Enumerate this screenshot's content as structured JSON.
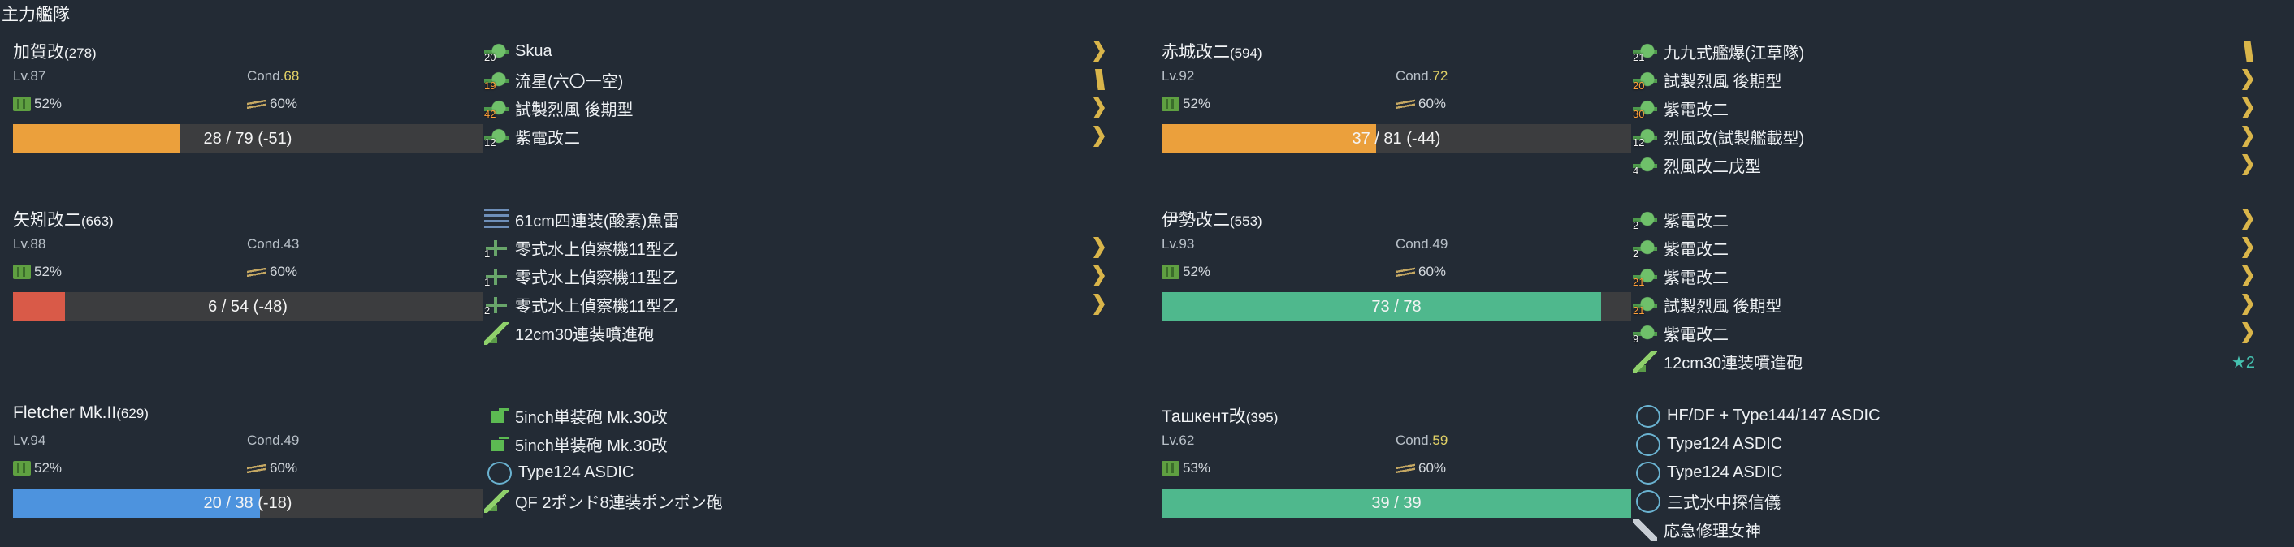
{
  "fleet": {
    "title": "主力艦隊"
  },
  "colors": {
    "hp_orange": "#eba03c",
    "hp_red": "#d95a48",
    "hp_green": "#4fb88d",
    "hp_blue": "#4d93de",
    "proficiency": "#d9b54a",
    "improvement": "#45c2b0"
  },
  "ships": [
    {
      "name": "加賀改",
      "id": "(278)",
      "lv": "Lv.87",
      "cond_label": "Cond.",
      "cond": "68",
      "fuel": "52%",
      "ammo": "60%",
      "hp_text": "28 / 79 (-51)",
      "hp_ratio": 0.354,
      "equips": [
        {
          "slot": "20",
          "name": "Skua",
          "icon": "plane-icon",
          "prof": "chevron"
        },
        {
          "slot": "19",
          "name": "流星(六〇一空)",
          "icon": "plane-icon",
          "prof": "bar"
        },
        {
          "slot": "42",
          "name": "試製烈風 後期型",
          "icon": "plane-icon",
          "prof": "chevron"
        },
        {
          "slot": "12",
          "name": "紫電改二",
          "icon": "plane-icon",
          "prof": "chevron"
        }
      ]
    },
    {
      "name": "赤城改二",
      "id": "(594)",
      "lv": "Lv.92",
      "cond_label": "Cond.",
      "cond": "72",
      "fuel": "52%",
      "ammo": "60%",
      "hp_text": "37 / 81 (-44)",
      "hp_ratio": 0.457,
      "equips": [
        {
          "slot": "21",
          "name": "九九式艦爆(江草隊)",
          "icon": "plane-icon",
          "prof": "bar"
        },
        {
          "slot": "20",
          "name": "試製烈風 後期型",
          "icon": "plane-icon",
          "prof": "chevron"
        },
        {
          "slot": "30",
          "name": "紫電改二",
          "icon": "plane-icon",
          "prof": "chevron"
        },
        {
          "slot": "12",
          "name": "烈風改(試製艦載型)",
          "icon": "plane-icon",
          "prof": "chevron"
        },
        {
          "slot": "4",
          "name": "烈風改二戊型",
          "icon": "plane-icon",
          "prof": "chevron"
        }
      ]
    },
    {
      "name": "矢矧改二",
      "id": "(663)",
      "lv": "Lv.88",
      "cond_label": "Cond.",
      "cond": "43",
      "fuel": "52%",
      "ammo": "60%",
      "hp_text": "6 / 54 (-48)",
      "hp_ratio": 0.111,
      "equips": [
        {
          "slot": "",
          "name": "61cm四連装(酸素)魚雷",
          "icon": "torpedo-icon",
          "prof": ""
        },
        {
          "slot": "1",
          "name": "零式水上偵察機11型乙",
          "icon": "seaplane-icon",
          "prof": "chevron"
        },
        {
          "slot": "1",
          "name": "零式水上偵察機11型乙",
          "icon": "seaplane-icon",
          "prof": "chevron"
        },
        {
          "slot": "2",
          "name": "零式水上偵察機11型乙",
          "icon": "seaplane-icon",
          "prof": "chevron"
        },
        {
          "slot": "",
          "name": "12cm30連装噴進砲",
          "icon": "aa-gun-icon",
          "prof": ""
        }
      ]
    },
    {
      "name": "伊勢改二",
      "id": "(553)",
      "lv": "Lv.93",
      "cond_label": "Cond.",
      "cond": "49",
      "fuel": "52%",
      "ammo": "60%",
      "hp_text": "73 / 78",
      "hp_ratio": 0.936,
      "equips": [
        {
          "slot": "2",
          "name": "紫電改二",
          "icon": "plane-icon",
          "prof": "chevron"
        },
        {
          "slot": "2",
          "name": "紫電改二",
          "icon": "plane-icon",
          "prof": "chevron"
        },
        {
          "slot": "21",
          "name": "紫電改二",
          "icon": "plane-icon",
          "prof": "chevron"
        },
        {
          "slot": "21",
          "name": "試製烈風 後期型",
          "icon": "plane-icon",
          "prof": "chevron"
        },
        {
          "slot": "9",
          "name": "紫電改二",
          "icon": "plane-icon",
          "prof": "chevron"
        },
        {
          "slot": "",
          "name": "12cm30連装噴進砲",
          "icon": "aa-gun-icon",
          "prof": "",
          "star": "★2"
        }
      ]
    },
    {
      "name": "Fletcher Mk.II",
      "id": "(629)",
      "lv": "Lv.94",
      "cond_label": "Cond.",
      "cond": "49",
      "fuel": "52%",
      "ammo": "60%",
      "hp_text": "20 / 38 (-18)",
      "hp_ratio": 0.526,
      "equips": [
        {
          "slot": "",
          "name": "5inch単装砲 Mk.30改",
          "icon": "gun-icon",
          "prof": ""
        },
        {
          "slot": "",
          "name": "5inch単装砲 Mk.30改",
          "icon": "gun-icon",
          "prof": ""
        },
        {
          "slot": "",
          "name": "Type124 ASDIC",
          "icon": "sonar-icon",
          "prof": ""
        },
        {
          "slot": "",
          "name": "QF 2ポンド8連装ポンポン砲",
          "icon": "aa-gun-icon",
          "prof": ""
        }
      ]
    },
    {
      "name": "Ташкент改",
      "id": "(395)",
      "lv": "Lv.62",
      "cond_label": "Cond.",
      "cond": "59",
      "fuel": "53%",
      "ammo": "60%",
      "hp_text": "39 / 39",
      "hp_ratio": 1.0,
      "equips": [
        {
          "slot": "",
          "name": "HF/DF + Type144/147 ASDIC",
          "icon": "sonar-icon",
          "prof": ""
        },
        {
          "slot": "",
          "name": "Type124 ASDIC",
          "icon": "sonar-icon",
          "prof": ""
        },
        {
          "slot": "",
          "name": "Type124 ASDIC",
          "icon": "sonar-icon",
          "prof": ""
        },
        {
          "slot": "",
          "name": "三式水中探信儀",
          "icon": "sonar-icon",
          "prof": ""
        },
        {
          "slot": "",
          "name": "応急修理女神",
          "icon": "repair-icon",
          "prof": ""
        }
      ]
    }
  ]
}
